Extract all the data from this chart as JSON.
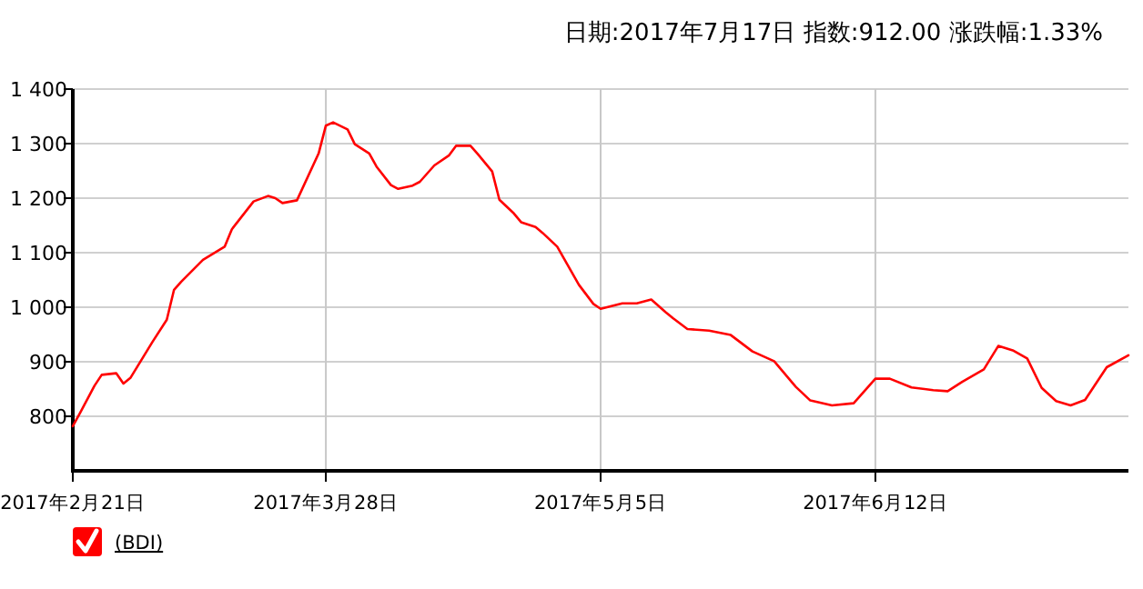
{
  "chart_data": {
    "type": "line",
    "title": "日期:2017年7月17日  指数:912.00  涨跌幅:1.33%",
    "x": [
      "2017-02-21",
      "2017-02-22",
      "2017-02-24",
      "2017-02-25",
      "2017-02-27",
      "2017-02-28",
      "2017-03-01",
      "2017-03-04",
      "2017-03-06",
      "2017-03-07",
      "2017-03-08",
      "2017-03-11",
      "2017-03-14",
      "2017-03-15",
      "2017-03-18",
      "2017-03-20",
      "2017-03-21",
      "2017-03-22",
      "2017-03-24",
      "2017-03-27",
      "2017-03-28",
      "2017-03-29",
      "2017-03-31",
      "2017-04-01",
      "2017-04-03",
      "2017-04-04",
      "2017-04-06",
      "2017-04-07",
      "2017-04-09",
      "2017-04-10",
      "2017-04-12",
      "2017-04-14",
      "2017-04-15",
      "2017-04-17",
      "2017-04-18",
      "2017-04-20",
      "2017-04-21",
      "2017-04-23",
      "2017-04-24",
      "2017-04-26",
      "2017-04-27",
      "2017-04-29",
      "2017-05-02",
      "2017-05-04",
      "2017-05-05",
      "2017-05-08",
      "2017-05-10",
      "2017-05-12",
      "2017-05-14",
      "2017-05-15",
      "2017-05-17",
      "2017-05-20",
      "2017-05-23",
      "2017-05-26",
      "2017-05-29",
      "2017-06-01",
      "2017-06-03",
      "2017-06-06",
      "2017-06-09",
      "2017-06-12",
      "2017-06-14",
      "2017-06-17",
      "2017-06-20",
      "2017-06-22",
      "2017-06-24",
      "2017-06-27",
      "2017-06-29",
      "2017-07-01",
      "2017-07-03",
      "2017-07-05",
      "2017-07-07",
      "2017-07-09",
      "2017-07-11",
      "2017-07-14",
      "2017-07-17"
    ],
    "series": [
      {
        "name": "(BDI)",
        "color": "#ff0000",
        "values": [
          782,
          806,
          856,
          876,
          879,
          860,
          871,
          936,
          977,
          1032,
          1047,
          1087,
          1111,
          1143,
          1194,
          1204,
          1200,
          1191,
          1196,
          1282,
          1333,
          1339,
          1326,
          1299,
          1282,
          1258,
          1224,
          1217,
          1223,
          1230,
          1260,
          1278,
          1296,
          1296,
          1281,
          1249,
          1197,
          1172,
          1156,
          1147,
          1136,
          1111,
          1041,
          1006,
          997,
          1007,
          1007,
          1014,
          991,
          980,
          960,
          957,
          949,
          919,
          901,
          854,
          829,
          820,
          824,
          869,
          869,
          853,
          848,
          846,
          863,
          886,
          929,
          921,
          906,
          852,
          828,
          820,
          830,
          890,
          912
        ]
      }
    ],
    "xlim": [
      "2017-02-21",
      "2017-07-17"
    ],
    "xticks": [
      {
        "value": "2017-02-21",
        "label": "2017年2月21日"
      },
      {
        "value": "2017-03-28",
        "label": "2017年3月28日"
      },
      {
        "value": "2017-05-05",
        "label": "2017年5月5日"
      },
      {
        "value": "2017-06-12",
        "label": "2017年6月12日"
      }
    ],
    "ylim": [
      700,
      1400
    ],
    "yticks": [
      {
        "value": 800,
        "label": "800"
      },
      {
        "value": 900,
        "label": "900"
      },
      {
        "value": 1000,
        "label": "1 000"
      },
      {
        "value": 1100,
        "label": "1 100"
      },
      {
        "value": 1200,
        "label": "1 200"
      },
      {
        "value": 1300,
        "label": "1 300"
      },
      {
        "value": 1400,
        "label": "1 400"
      }
    ],
    "grid": true,
    "legend": "bottom left",
    "marker": "none",
    "line_style": "solid"
  }
}
